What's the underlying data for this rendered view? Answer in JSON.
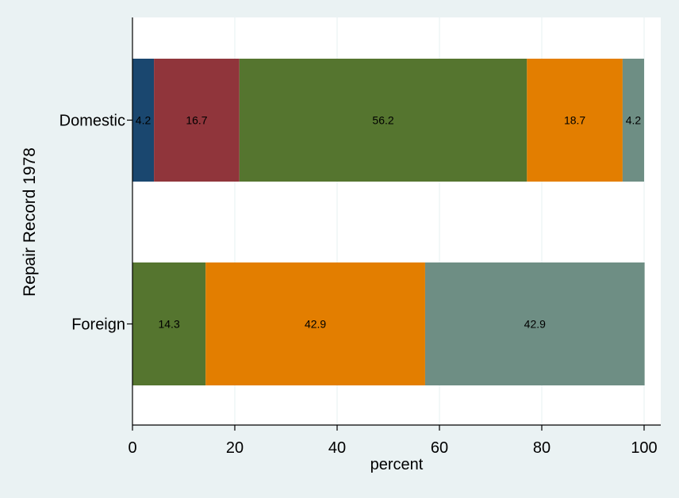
{
  "chart_data": {
    "type": "bar",
    "orientation": "horizontal",
    "stacked": true,
    "title": "",
    "xlabel": "percent",
    "ylabel": "Repair Record 1978",
    "xlim": [
      0,
      100
    ],
    "xticks": [
      0,
      20,
      40,
      60,
      80,
      100
    ],
    "grid": true,
    "legend": "none",
    "categories": [
      "Domestic",
      "Foreign"
    ],
    "series": [
      {
        "color": "#1a476f",
        "values": [
          4.2,
          0
        ]
      },
      {
        "color": "#90353b",
        "values": [
          16.7,
          0
        ]
      },
      {
        "color": "#55752f",
        "values": [
          56.2,
          14.3
        ]
      },
      {
        "color": "#e37e00",
        "values": [
          18.7,
          42.9
        ]
      },
      {
        "color": "#6e8e84",
        "values": [
          4.2,
          42.9
        ]
      }
    ],
    "data_labels": [
      [
        "4.2",
        "16.7",
        "56.2",
        "18.7",
        "4.2"
      ],
      [
        "",
        "",
        "14.3",
        "42.9",
        "42.9"
      ]
    ],
    "colors": {
      "plot_background": "#ffffff",
      "outer_background": "#eaf2f3",
      "grid": "#eaf2f3"
    }
  }
}
